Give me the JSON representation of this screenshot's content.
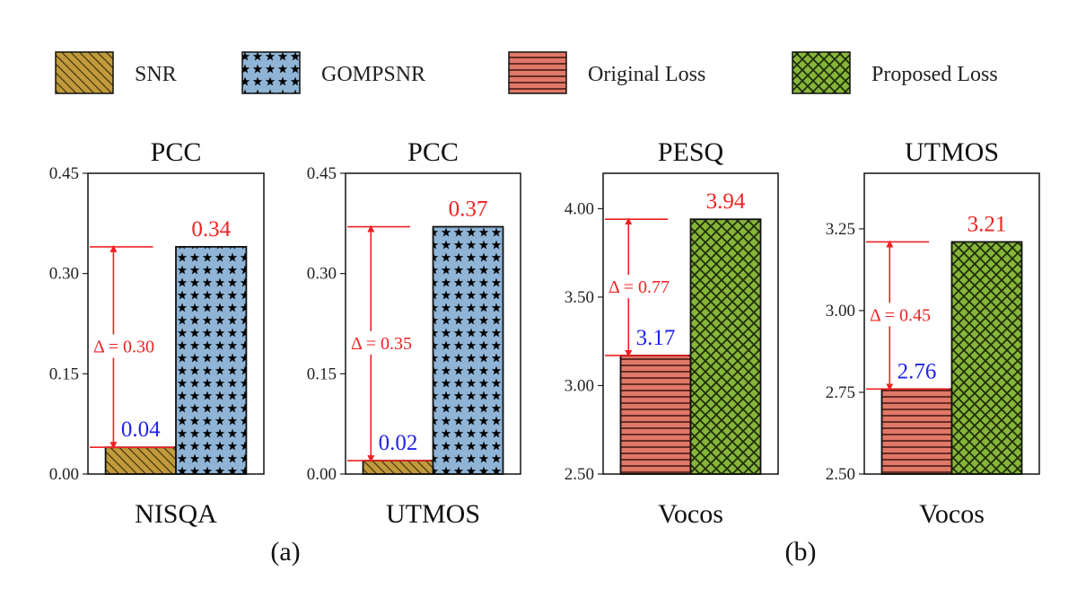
{
  "legend": [
    {
      "label": "SNR",
      "pattern": "snr"
    },
    {
      "label": "GOMPSNR",
      "pattern": "gomp"
    },
    {
      "label": "Original Loss",
      "pattern": "orig"
    },
    {
      "label": "Proposed Loss",
      "pattern": "prop"
    }
  ],
  "colors": {
    "snr": "#c09a3c",
    "gomp": "#8fb4d6",
    "orig": "#e07868",
    "prop": "#86b53a",
    "blue_label": "#2222ee",
    "red_label": "#ee2222"
  },
  "subfig_labels": [
    "(a)",
    "(b)"
  ],
  "chart_data": [
    {
      "type": "bar",
      "title": "PCC",
      "xlabel": "NISQA",
      "ylim": [
        0,
        0.45
      ],
      "yticks": [
        "0.00",
        "0.15",
        "0.30",
        "0.45"
      ],
      "series": [
        {
          "name": "SNR",
          "value": 0.04,
          "label": "0.04"
        },
        {
          "name": "GOMPSNR",
          "value": 0.34,
          "label": "0.34"
        }
      ],
      "delta_label": "Δ = 0.30"
    },
    {
      "type": "bar",
      "title": "PCC",
      "xlabel": "UTMOS",
      "ylim": [
        0,
        0.45
      ],
      "yticks": [
        "0.00",
        "0.15",
        "0.30",
        "0.45"
      ],
      "series": [
        {
          "name": "SNR",
          "value": 0.02,
          "label": "0.02"
        },
        {
          "name": "GOMPSNR",
          "value": 0.37,
          "label": "0.37"
        }
      ],
      "delta_label": "Δ = 0.35"
    },
    {
      "type": "bar",
      "title": "PESQ",
      "xlabel": "Vocos",
      "ylim": [
        2.5,
        4.2
      ],
      "yticks": [
        "2.50",
        "3.00",
        "3.50",
        "4.00"
      ],
      "series": [
        {
          "name": "Original Loss",
          "value": 3.17,
          "label": "3.17"
        },
        {
          "name": "Proposed Loss",
          "value": 3.94,
          "label": "3.94"
        }
      ],
      "delta_label": "Δ = 0.77"
    },
    {
      "type": "bar",
      "title": "UTMOS",
      "xlabel": "Vocos",
      "ylim": [
        2.5,
        3.42
      ],
      "yticks": [
        "2.50",
        "2.75",
        "3.00",
        "3.25"
      ],
      "series": [
        {
          "name": "Original Loss",
          "value": 2.76,
          "label": "2.76"
        },
        {
          "name": "Proposed Loss",
          "value": 3.21,
          "label": "3.21"
        }
      ],
      "delta_label": "Δ = 0.45"
    }
  ]
}
